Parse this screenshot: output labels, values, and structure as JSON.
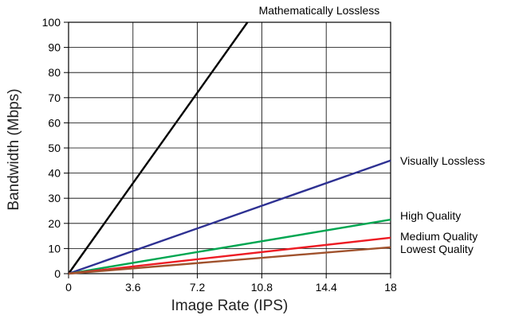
{
  "chart_data": {
    "type": "line",
    "title": "",
    "xlabel": "Image Rate (IPS)",
    "ylabel": "Bandwidth (Mbps)",
    "xlim": [
      0,
      18
    ],
    "ylim": [
      0,
      100
    ],
    "x_ticks": [
      "0",
      "3.6",
      "7.2",
      "10.8",
      "14.4",
      "18"
    ],
    "x_tick_values": [
      0,
      3.6,
      7.2,
      10.8,
      14.4,
      18
    ],
    "y_ticks": [
      "0",
      "10",
      "20",
      "30",
      "40",
      "50",
      "60",
      "70",
      "80",
      "90",
      "100"
    ],
    "y_tick_values": [
      0,
      10,
      20,
      30,
      40,
      50,
      60,
      70,
      80,
      90,
      100
    ],
    "grid": true,
    "legend": "direct labels at line ends",
    "series": [
      {
        "name": "Mathematically Lossless",
        "color": "#000000",
        "x": [
          0,
          10.0
        ],
        "y": [
          0,
          100
        ]
      },
      {
        "name": "Visually Lossless",
        "color": "#2e3192",
        "x": [
          0,
          18
        ],
        "y": [
          0,
          45
        ]
      },
      {
        "name": "High Quality",
        "color": "#00a651",
        "x": [
          0,
          18
        ],
        "y": [
          0,
          21.5
        ]
      },
      {
        "name": "Medium Quality",
        "color": "#ed1c24",
        "x": [
          0,
          18
        ],
        "y": [
          0,
          14.3
        ]
      },
      {
        "name": "Lowest Quality",
        "color": "#a0522d",
        "x": [
          0,
          18
        ],
        "y": [
          0,
          10.5
        ]
      }
    ]
  }
}
